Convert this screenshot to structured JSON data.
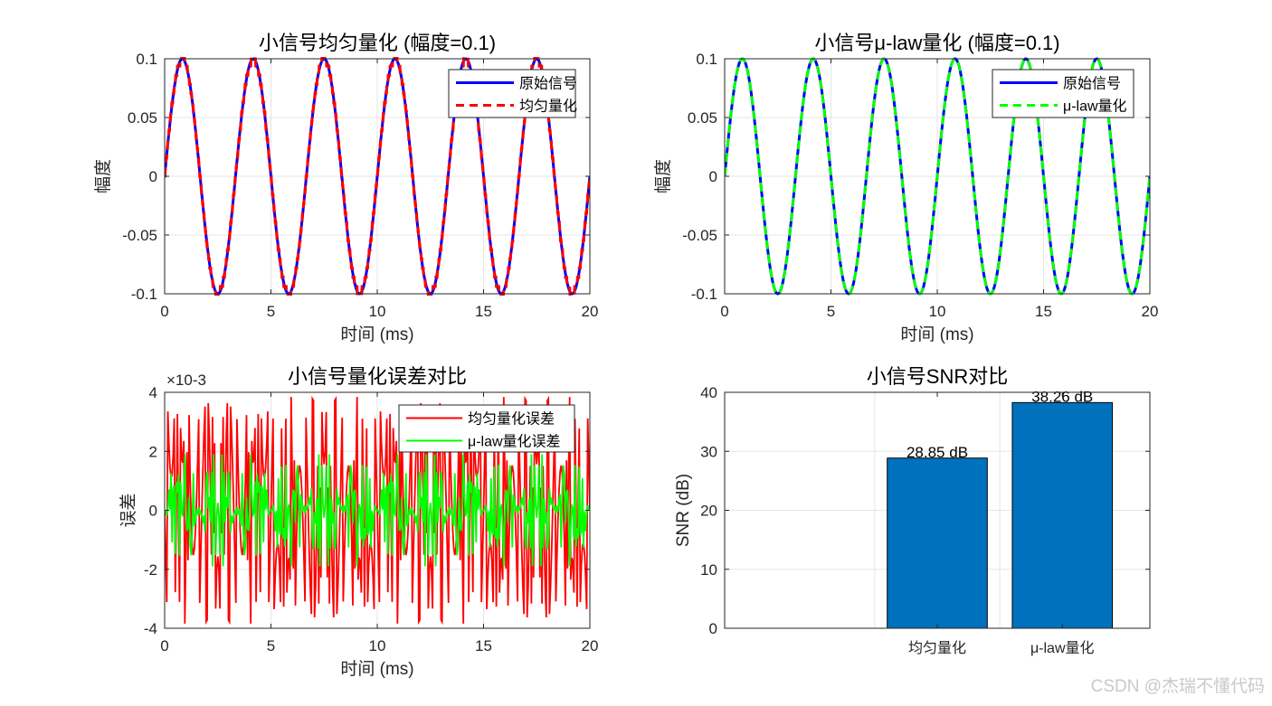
{
  "watermark": "CSDN @杰瑞不懂代码",
  "colors": {
    "original": "#0000ff",
    "uniform": "#ff0000",
    "mulaw": "#00ff00",
    "bar": "#0072bd",
    "grid": "#e5e5e5",
    "axis": "#262626"
  },
  "chart_data": [
    {
      "type": "line",
      "title": "小信号均匀量化 (幅度=0.1)",
      "xlabel": "时间 (ms)",
      "ylabel": "幅度",
      "xlim": [
        0,
        20
      ],
      "ylim": [
        -0.1,
        0.1
      ],
      "xticks": [
        0,
        5,
        10,
        15,
        20
      ],
      "xtick_labels": [
        "0",
        "5",
        "10",
        "15",
        "20"
      ],
      "yticks": [
        -0.1,
        -0.05,
        0,
        0.05,
        0.1
      ],
      "ytick_labels": [
        "-0.1",
        "-0.05",
        "0",
        "0.05",
        "0.1"
      ],
      "grid": true,
      "legend_position": "top-right",
      "signal": {
        "amplitude": 0.1,
        "frequency_khz": 0.3,
        "duration_ms": 20
      },
      "series": [
        {
          "name": "原始信号",
          "color": "#0000ff",
          "style": "solid"
        },
        {
          "name": "均匀量化",
          "color": "#ff0000",
          "style": "dashed"
        }
      ]
    },
    {
      "type": "line",
      "title": "小信号μ-law量化 (幅度=0.1)",
      "xlabel": "时间 (ms)",
      "ylabel": "幅度",
      "xlim": [
        0,
        20
      ],
      "ylim": [
        -0.1,
        0.1
      ],
      "xticks": [
        0,
        5,
        10,
        15,
        20
      ],
      "xtick_labels": [
        "0",
        "5",
        "10",
        "15",
        "20"
      ],
      "yticks": [
        -0.1,
        -0.05,
        0,
        0.05,
        0.1
      ],
      "ytick_labels": [
        "-0.1",
        "-0.05",
        "0",
        "0.05",
        "0.1"
      ],
      "grid": true,
      "legend_position": "top-right",
      "signal": {
        "amplitude": 0.1,
        "frequency_khz": 0.3,
        "duration_ms": 20
      },
      "series": [
        {
          "name": "原始信号",
          "color": "#0000ff",
          "style": "solid"
        },
        {
          "name": "μ-law量化",
          "color": "#00ff00",
          "style": "dashed"
        }
      ]
    },
    {
      "type": "line",
      "title": "小信号量化误差对比",
      "xlabel": "时间 (ms)",
      "ylabel": "误差",
      "y_exponent": "×10-3",
      "xlim": [
        0,
        20
      ],
      "ylim": [
        -4,
        4
      ],
      "xticks": [
        0,
        5,
        10,
        15,
        20
      ],
      "xtick_labels": [
        "0",
        "5",
        "10",
        "15",
        "20"
      ],
      "yticks": [
        -4,
        -2,
        0,
        2,
        4
      ],
      "ytick_labels": [
        "-4",
        "-2",
        "0",
        "2",
        "4"
      ],
      "grid": true,
      "legend_position": "top-right",
      "signal": {
        "amplitude": 0.1,
        "frequency_khz": 0.3,
        "duration_ms": 20
      },
      "series": [
        {
          "name": "均匀量化误差",
          "color": "#ff0000",
          "step": 0.0078125,
          "limit": 4
        },
        {
          "name": "μ-law量化误差",
          "color": "#00ff00",
          "step": 0.0025,
          "limit": 1.9
        }
      ]
    },
    {
      "type": "bar",
      "title": "小信号SNR对比",
      "xlabel": "",
      "ylabel": "SNR (dB)",
      "categories": [
        "均匀量化",
        "μ-law量化"
      ],
      "values": [
        28.85,
        38.26
      ],
      "data_labels": [
        "28.85 dB",
        "38.26 dB"
      ],
      "ylim": [
        0,
        40
      ],
      "yticks": [
        0,
        10,
        20,
        30,
        40
      ],
      "ytick_labels": [
        "0",
        "10",
        "20",
        "30",
        "40"
      ],
      "grid": true
    }
  ]
}
